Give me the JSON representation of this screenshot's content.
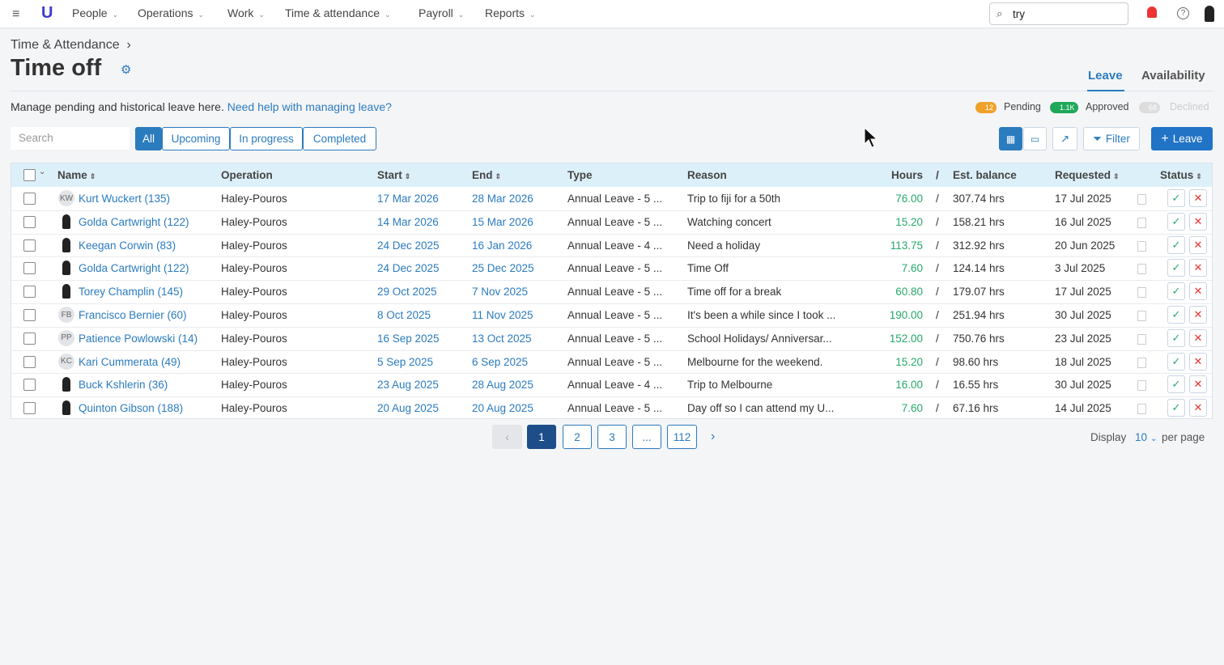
{
  "nav": {
    "items": [
      "People",
      "Operations",
      "Work",
      "Time & attendance",
      "Payroll",
      "Reports"
    ],
    "search": "try"
  },
  "header": {
    "breadcrumb": "Time & Attendance",
    "title": "Time off",
    "tabs": [
      "Leave",
      "Availability"
    ],
    "description": "Manage pending and historical leave here.",
    "help_link": "Need help with managing leave?"
  },
  "status_counts": [
    {
      "count": "12",
      "label": "Pending"
    },
    {
      "count": "1.1K",
      "label": "Approved"
    },
    {
      "count": "68",
      "label": "Declined"
    }
  ],
  "filters": {
    "search_placeholder": "Search",
    "segments": [
      "All",
      "Upcoming",
      "In progress",
      "Completed"
    ],
    "buttons": [
      "Filter",
      "Leave"
    ]
  },
  "table": {
    "columns": [
      "Name",
      "Operation",
      "Start",
      "End",
      "Type",
      "Reason",
      "Hours",
      "/",
      "Est. balance",
      "Requested",
      "Status"
    ],
    "rows": [
      [
        "KW",
        "Kurt Wuckert (135)",
        "Haley-Pouros",
        "17 Mar 2026",
        "28 Mar 2026",
        "Annual Leave - 5 ...",
        "Trip to fiji for a 50th",
        "76.00",
        "307.74 hrs",
        "17 Jul 2025"
      ],
      [
        null,
        "Golda Cartwright (122)",
        "Haley-Pouros",
        "14 Mar 2026",
        "15 Mar 2026",
        "Annual Leave - 5 ...",
        "Watching concert",
        "15.20",
        "158.21 hrs",
        "16 Jul 2025"
      ],
      [
        null,
        "Keegan Corwin (83)",
        "Haley-Pouros",
        "24 Dec 2025",
        "16 Jan 2026",
        "Annual Leave - 4 ...",
        "Need a holiday",
        "113.75",
        "312.92 hrs",
        "20 Jun 2025"
      ],
      [
        null,
        "Golda Cartwright (122)",
        "Haley-Pouros",
        "24 Dec 2025",
        "25 Dec 2025",
        "Annual Leave - 5 ...",
        "Time Off",
        "7.60",
        "124.14 hrs",
        "3 Jul 2025"
      ],
      [
        null,
        "Torey Champlin (145)",
        "Haley-Pouros",
        "29 Oct 2025",
        "7 Nov 2025",
        "Annual Leave - 5 ...",
        "Time off for a break",
        "60.80",
        "179.07 hrs",
        "17 Jul 2025"
      ],
      [
        "FB",
        "Francisco Bernier (60)",
        "Haley-Pouros",
        "8 Oct 2025",
        "11 Nov 2025",
        "Annual Leave - 5 ...",
        "It's been a while since I took ...",
        "190.00",
        "251.94 hrs",
        "30 Jul 2025"
      ],
      [
        "PP",
        "Patience Powlowski (14)",
        "Haley-Pouros",
        "16 Sep 2025",
        "13 Oct 2025",
        "Annual Leave - 5 ...",
        "School Holidays/ Anniversar...",
        "152.00",
        "750.76 hrs",
        "23 Jul 2025"
      ],
      [
        "KC",
        "Kari Cummerata (49)",
        "Haley-Pouros",
        "5 Sep 2025",
        "6 Sep 2025",
        "Annual Leave - 5 ...",
        "Melbourne for the weekend.",
        "15.20",
        "98.60 hrs",
        "18 Jul 2025"
      ],
      [
        null,
        "Buck Kshlerin (36)",
        "Haley-Pouros",
        "23 Aug 2025",
        "28 Aug 2025",
        "Annual Leave - 4 ...",
        "Trip to Melbourne",
        "16.00",
        "16.55 hrs",
        "30 Jul 2025"
      ],
      [
        null,
        "Quinton Gibson (188)",
        "Haley-Pouros",
        "20 Aug 2025",
        "20 Aug 2025",
        "Annual Leave - 5 ...",
        "Day off so I can attend my U...",
        "7.60",
        "67.16 hrs",
        "14 Jul 2025"
      ]
    ]
  },
  "pagination": {
    "pages": [
      "1",
      "2",
      "3",
      "...",
      "112"
    ],
    "display_label": "Display",
    "per_page": "10",
    "suffix": "per page"
  }
}
